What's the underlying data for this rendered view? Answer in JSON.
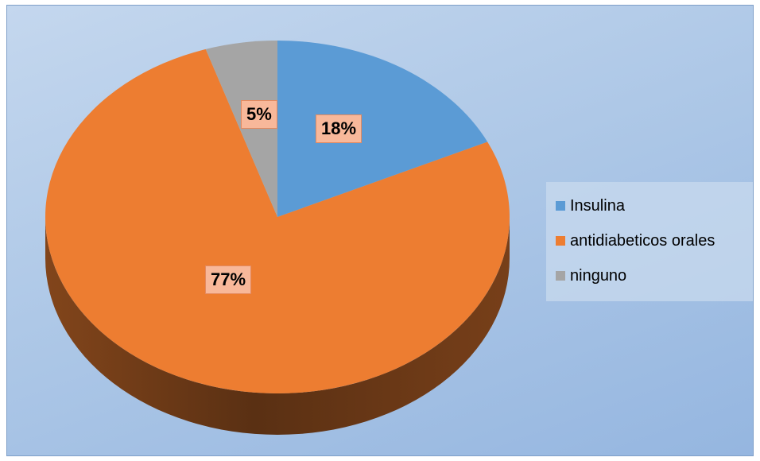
{
  "chart_data": {
    "type": "pie",
    "title": "",
    "categories": [
      "Insulina",
      "antidiabeticos orales",
      "ninguno"
    ],
    "values": [
      18,
      77,
      5
    ],
    "labels": [
      "18%",
      "77%",
      "5%"
    ],
    "colors": [
      "#5b9bd5",
      "#ed7d31",
      "#a5a5a5"
    ],
    "legend_position": "right",
    "style": "3d"
  }
}
